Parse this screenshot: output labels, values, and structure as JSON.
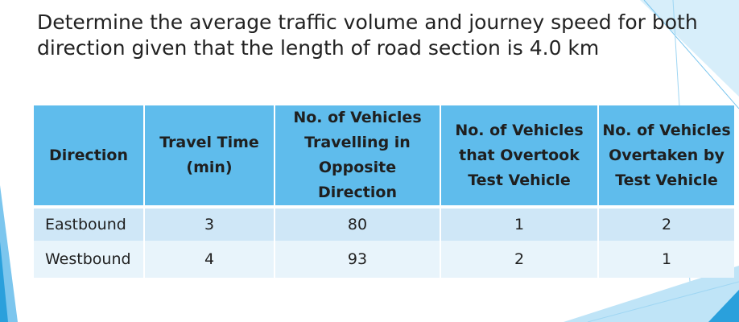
{
  "slide": {
    "title": "Determine the average traffic volume and journey speed for both direction given that the length of road section is 4.0 km"
  },
  "table": {
    "headers": [
      "Direction",
      "Travel Time (min)",
      "No. of Vehicles Travelling in Opposite Direction",
      "No. of Vehicles that Overtook Test Vehicle",
      "No. of Vehicles Overtaken by Test Vehicle"
    ],
    "rows": [
      [
        "Eastbound",
        "3",
        "80",
        "1",
        "2"
      ],
      [
        "Westbound",
        "4",
        "93",
        "2",
        "1"
      ]
    ]
  },
  "colors": {
    "header_bg": "#5fbcec",
    "row_odd_bg": "#cfe7f7",
    "row_even_bg": "#e8f4fb",
    "accent": "#3aa8e0"
  }
}
